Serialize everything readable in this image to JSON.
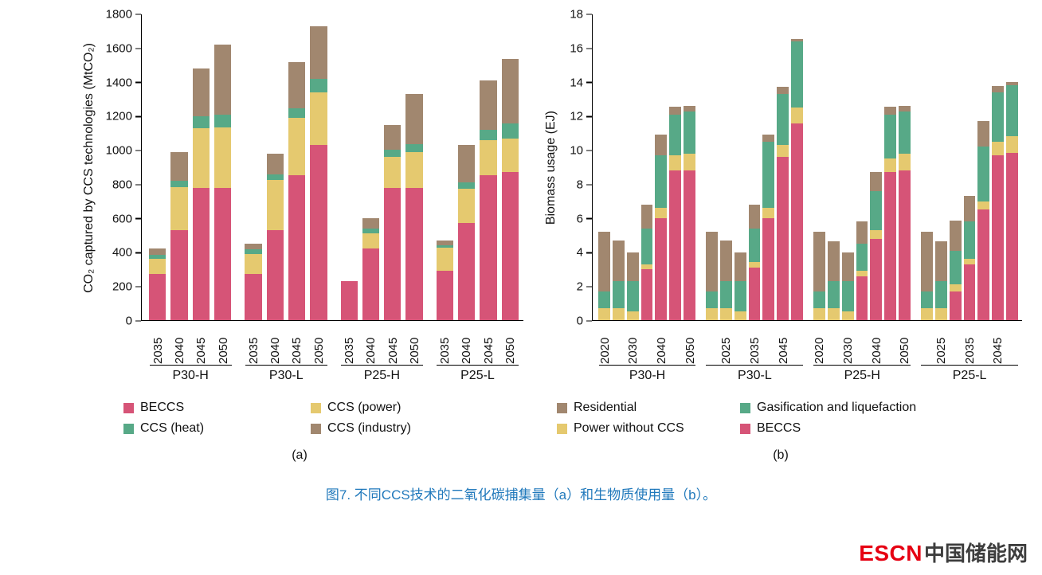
{
  "page": {
    "background": "#ffffff",
    "caption": "图7. 不同CCS技术的二氧化碳捕集量（a）和生物质使用量（b）。",
    "caption_color": "#1f78bb",
    "logo": {
      "escn": "ESCN",
      "cn": "中国储能网",
      "escn_color": "#e60012",
      "cn_color": "#3d3d3d"
    }
  },
  "chart_data": [
    {
      "id": "a",
      "type": "bar",
      "stacked": true,
      "subplot_label": "(a)",
      "ylabel": "CO₂ captured by CCS technologies (MtCO₂)",
      "xlabel": "",
      "ylim": [
        0,
        1800
      ],
      "ytick_step": 200,
      "grid": false,
      "legend_position": "below",
      "series": [
        "BECCS",
        "CCS (power)",
        "CCS (heat)",
        "CCS (industry)"
      ],
      "colors": [
        "#d65477",
        "#e5c96f",
        "#57a987",
        "#a1876f"
      ],
      "legend_rows": [
        [
          "BECCS",
          "CCS (power)"
        ],
        [
          "CCS (heat)",
          "CCS (industry)"
        ]
      ],
      "groups": [
        {
          "label": "P30-H",
          "bars": [
            {
              "x": "2035",
              "show_x": true,
              "values": [
                270,
                90,
                25,
                35
              ]
            },
            {
              "x": "2040",
              "show_x": true,
              "values": [
                530,
                255,
                35,
                170
              ]
            },
            {
              "x": "2045",
              "show_x": true,
              "values": [
                780,
                350,
                70,
                280
              ]
            },
            {
              "x": "2050",
              "show_x": true,
              "values": [
                780,
                355,
                75,
                410
              ]
            }
          ]
        },
        {
          "label": "P30-L",
          "bars": [
            {
              "x": "2035",
              "show_x": true,
              "values": [
                270,
                120,
                25,
                35
              ]
            },
            {
              "x": "2040",
              "show_x": true,
              "values": [
                530,
                295,
                35,
                120
              ]
            },
            {
              "x": "2045",
              "show_x": true,
              "values": [
                855,
                335,
                55,
                275
              ]
            },
            {
              "x": "2050",
              "show_x": true,
              "values": [
                1030,
                310,
                80,
                310
              ]
            }
          ]
        },
        {
          "label": "P25-H",
          "bars": [
            {
              "x": "2035",
              "show_x": true,
              "values": [
                230,
                0,
                0,
                0
              ]
            },
            {
              "x": "2040",
              "show_x": true,
              "values": [
                420,
                90,
                30,
                60
              ]
            },
            {
              "x": "2045",
              "show_x": true,
              "values": [
                780,
                180,
                45,
                145
              ]
            },
            {
              "x": "2050",
              "show_x": true,
              "values": [
                780,
                210,
                45,
                295
              ]
            }
          ]
        },
        {
          "label": "P25-L",
          "bars": [
            {
              "x": "2035",
              "show_x": true,
              "values": [
                290,
                135,
                15,
                30
              ]
            },
            {
              "x": "2040",
              "show_x": true,
              "values": [
                570,
                205,
                35,
                220
              ]
            },
            {
              "x": "2045",
              "show_x": true,
              "values": [
                855,
                205,
                60,
                290
              ]
            },
            {
              "x": "2050",
              "show_x": true,
              "values": [
                870,
                200,
                90,
                380
              ]
            }
          ]
        }
      ]
    },
    {
      "id": "b",
      "type": "bar",
      "stacked": true,
      "subplot_label": "(b)",
      "ylabel": "Biomass usage (EJ)",
      "xlabel": "",
      "ylim": [
        0,
        18
      ],
      "ytick_step": 2,
      "grid": false,
      "legend_position": "below",
      "series": [
        "BECCS",
        "Power without CCS",
        "Gasification and liquefaction",
        "Residential"
      ],
      "colors": [
        "#d65477",
        "#e5c96f",
        "#57a987",
        "#a1876f"
      ],
      "legend_rows": [
        [
          "Residential",
          "Gasification and liquefaction"
        ],
        [
          "Power without CCS",
          "BECCS"
        ]
      ],
      "groups": [
        {
          "label": "P30-H",
          "bars": [
            {
              "x": "2020",
              "show_x": true,
              "values": [
                0,
                0.7,
                1.0,
                3.5
              ]
            },
            {
              "x": "2025",
              "show_x": false,
              "values": [
                0,
                0.7,
                1.6,
                2.4
              ]
            },
            {
              "x": "2030",
              "show_x": true,
              "values": [
                0,
                0.5,
                1.8,
                1.7
              ]
            },
            {
              "x": "2035",
              "show_x": false,
              "values": [
                3.0,
                0.3,
                2.1,
                1.4
              ]
            },
            {
              "x": "2040",
              "show_x": true,
              "values": [
                6.0,
                0.6,
                3.1,
                1.2
              ]
            },
            {
              "x": "2045",
              "show_x": false,
              "values": [
                8.8,
                0.9,
                2.4,
                0.45
              ]
            },
            {
              "x": "2050",
              "show_x": true,
              "values": [
                8.8,
                1.0,
                2.5,
                0.3
              ]
            }
          ]
        },
        {
          "label": "P30-L",
          "bars": [
            {
              "x": "2020",
              "show_x": false,
              "values": [
                0,
                0.7,
                1.0,
                3.5
              ]
            },
            {
              "x": "2025",
              "show_x": true,
              "values": [
                0,
                0.7,
                1.6,
                2.4
              ]
            },
            {
              "x": "2030",
              "show_x": false,
              "values": [
                0,
                0.5,
                1.8,
                1.7
              ]
            },
            {
              "x": "2035",
              "show_x": true,
              "values": [
                3.1,
                0.3,
                2.0,
                1.4
              ]
            },
            {
              "x": "2040",
              "show_x": false,
              "values": [
                6.0,
                0.6,
                3.9,
                0.4
              ]
            },
            {
              "x": "2045",
              "show_x": true,
              "values": [
                9.6,
                0.7,
                3.0,
                0.45
              ]
            },
            {
              "x": "2050",
              "show_x": false,
              "values": [
                11.6,
                0.9,
                3.9,
                0.15
              ]
            }
          ]
        },
        {
          "label": "P25-H",
          "bars": [
            {
              "x": "2020",
              "show_x": true,
              "values": [
                0,
                0.7,
                1.0,
                3.5
              ]
            },
            {
              "x": "2025",
              "show_x": false,
              "values": [
                0,
                0.7,
                1.6,
                2.35
              ]
            },
            {
              "x": "2030",
              "show_x": true,
              "values": [
                0,
                0.5,
                1.8,
                1.7
              ]
            },
            {
              "x": "2035",
              "show_x": false,
              "values": [
                2.6,
                0.3,
                1.6,
                1.3
              ]
            },
            {
              "x": "2040",
              "show_x": true,
              "values": [
                4.8,
                0.5,
                2.3,
                1.1
              ]
            },
            {
              "x": "2045",
              "show_x": false,
              "values": [
                8.7,
                0.8,
                2.6,
                0.45
              ]
            },
            {
              "x": "2050",
              "show_x": true,
              "values": [
                8.8,
                1.0,
                2.5,
                0.3
              ]
            }
          ]
        },
        {
          "label": "P25-L",
          "bars": [
            {
              "x": "2020",
              "show_x": false,
              "values": [
                0,
                0.7,
                1.0,
                3.5
              ]
            },
            {
              "x": "2025",
              "show_x": true,
              "values": [
                0,
                0.7,
                1.6,
                2.35
              ]
            },
            {
              "x": "2030",
              "show_x": false,
              "values": [
                1.7,
                0.4,
                2.0,
                1.75
              ]
            },
            {
              "x": "2035",
              "show_x": true,
              "values": [
                3.3,
                0.3,
                2.2,
                1.5
              ]
            },
            {
              "x": "2040",
              "show_x": false,
              "values": [
                6.5,
                0.5,
                3.2,
                1.5
              ]
            },
            {
              "x": "2045",
              "show_x": true,
              "values": [
                9.7,
                0.8,
                2.9,
                0.4
              ]
            },
            {
              "x": "2050",
              "show_x": false,
              "values": [
                9.85,
                1.0,
                3.0,
                0.15
              ]
            }
          ]
        }
      ]
    }
  ]
}
